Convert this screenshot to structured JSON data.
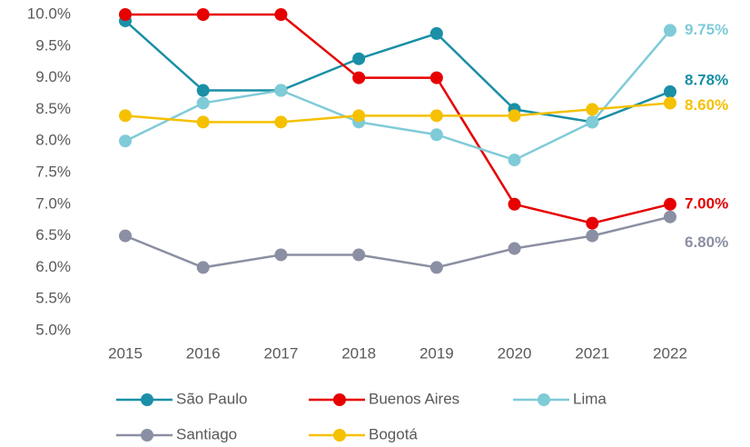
{
  "chart_data": {
    "type": "line",
    "categories": [
      "2015",
      "2016",
      "2017",
      "2018",
      "2019",
      "2020",
      "2021",
      "2022"
    ],
    "ylim": [
      5.0,
      10.0
    ],
    "yticks": [
      {
        "value": 5.0,
        "label": "5.0%"
      },
      {
        "value": 5.5,
        "label": "5.5%"
      },
      {
        "value": 6.0,
        "label": "6.0%"
      },
      {
        "value": 6.5,
        "label": "6.5%"
      },
      {
        "value": 7.0,
        "label": "7.0%"
      },
      {
        "value": 7.5,
        "label": "7.5%"
      },
      {
        "value": 8.0,
        "label": "8.0%"
      },
      {
        "value": 8.5,
        "label": "8.5%"
      },
      {
        "value": 9.0,
        "label": "9.0%"
      },
      {
        "value": 9.5,
        "label": "9.5%"
      },
      {
        "value": 10.0,
        "label": "10.0%"
      }
    ],
    "grid": false,
    "legend": "bottom",
    "series": [
      {
        "name": "São Paulo",
        "color": "#1a8fa6",
        "values": [
          9.9,
          8.8,
          8.8,
          9.3,
          9.7,
          8.5,
          8.3,
          8.78
        ],
        "value_labels": [
          null,
          null,
          null,
          null,
          null,
          null,
          null,
          "8.78%"
        ]
      },
      {
        "name": "Buenos Aires",
        "color": "#e60000",
        "values": [
          10.0,
          10.0,
          10.0,
          9.0,
          9.0,
          7.0,
          6.7,
          7.0
        ],
        "value_labels": [
          null,
          null,
          null,
          null,
          null,
          null,
          null,
          "7.00%"
        ]
      },
      {
        "name": "Lima",
        "color": "#7fcbd8",
        "values": [
          8.0,
          8.6,
          8.8,
          8.3,
          8.1,
          7.7,
          8.3,
          9.75
        ],
        "value_labels": [
          null,
          null,
          null,
          null,
          null,
          null,
          null,
          "9.75%"
        ]
      },
      {
        "name": "Santiago",
        "color": "#8b8fa3",
        "values": [
          6.5,
          6.0,
          6.2,
          6.2,
          6.0,
          6.3,
          6.5,
          6.8
        ],
        "value_labels": [
          null,
          null,
          null,
          null,
          null,
          null,
          null,
          "6.80%"
        ]
      },
      {
        "name": "Bogotá",
        "color": "#f5c000",
        "values": [
          8.4,
          8.3,
          8.3,
          8.4,
          8.4,
          8.4,
          8.5,
          8.6
        ],
        "value_labels": [
          null,
          null,
          null,
          null,
          null,
          null,
          null,
          "8.60%"
        ]
      }
    ]
  }
}
